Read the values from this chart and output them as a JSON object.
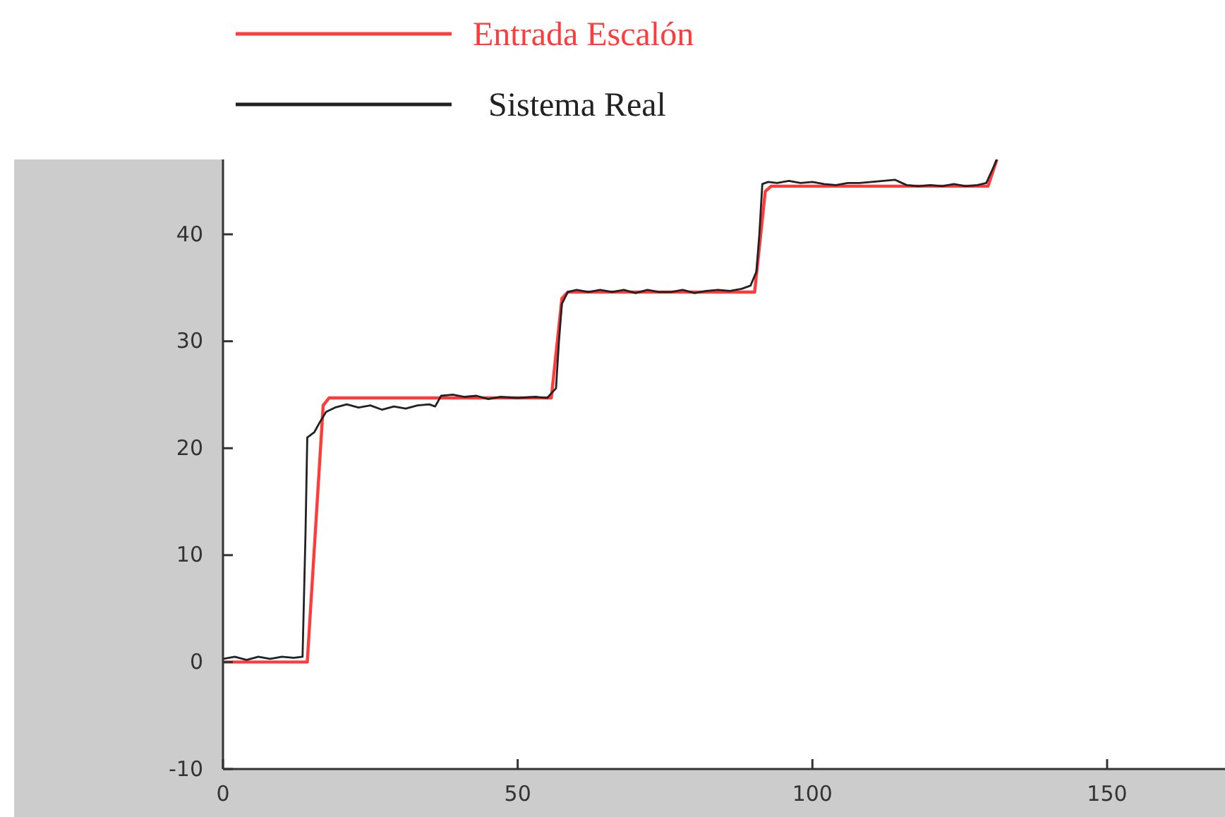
{
  "chart_data": {
    "type": "line",
    "xlim": [
      0,
      170
    ],
    "ylim": [
      -10,
      47
    ],
    "xticks": [
      0,
      50,
      100,
      150
    ],
    "yticks": [
      -10,
      0,
      10,
      20,
      30,
      40
    ],
    "legend": "top",
    "grid": false,
    "series": [
      {
        "name": "Entrada Escalón",
        "color": "#ff3b3b",
        "x": [
          0,
          14.3,
          17,
          18,
          55.7,
          57.5,
          58.5,
          90.2,
          92,
          93,
          129.8,
          131.3
        ],
        "values": [
          0,
          0,
          24,
          24.7,
          24.7,
          34,
          34.6,
          34.6,
          44,
          44.5,
          44.5,
          47
        ]
      },
      {
        "name": "Sistema Real",
        "color": "#222222",
        "x": [
          0,
          2,
          4,
          6,
          8,
          10,
          12,
          13.5,
          14,
          14.3,
          15.5,
          16.5,
          17.5,
          19,
          21,
          23,
          25,
          27,
          29,
          31,
          33,
          35,
          36,
          37,
          39,
          41,
          43,
          45,
          47,
          50,
          53,
          55,
          56,
          56.5,
          57,
          57.5,
          58.5,
          60,
          62,
          64,
          66,
          68,
          70,
          72,
          74,
          76,
          78,
          80,
          82,
          84,
          86,
          88,
          89.5,
          90.5,
          91,
          91.5,
          92.5,
          94,
          96,
          98,
          100,
          102,
          104,
          106,
          108,
          110,
          112,
          114,
          116,
          118,
          120,
          122,
          124,
          126,
          128,
          129.5,
          130.5,
          131.3
        ],
        "values": [
          0.3,
          0.5,
          0.2,
          0.5,
          0.3,
          0.5,
          0.4,
          0.5,
          12,
          21,
          21.5,
          22.5,
          23.4,
          23.8,
          24.1,
          23.8,
          24,
          23.6,
          23.9,
          23.7,
          24,
          24.1,
          23.9,
          24.9,
          25,
          24.8,
          24.9,
          24.6,
          24.8,
          24.7,
          24.8,
          24.7,
          25.3,
          25.6,
          30,
          33.5,
          34.6,
          34.8,
          34.6,
          34.8,
          34.6,
          34.8,
          34.5,
          34.8,
          34.6,
          34.6,
          34.8,
          34.5,
          34.7,
          34.8,
          34.7,
          34.9,
          35.2,
          36.5,
          40,
          44.7,
          44.9,
          44.8,
          45,
          44.8,
          44.9,
          44.7,
          44.6,
          44.8,
          44.8,
          44.9,
          45,
          45.1,
          44.6,
          44.5,
          44.6,
          44.5,
          44.7,
          44.5,
          44.6,
          44.8,
          46,
          47
        ]
      }
    ]
  }
}
